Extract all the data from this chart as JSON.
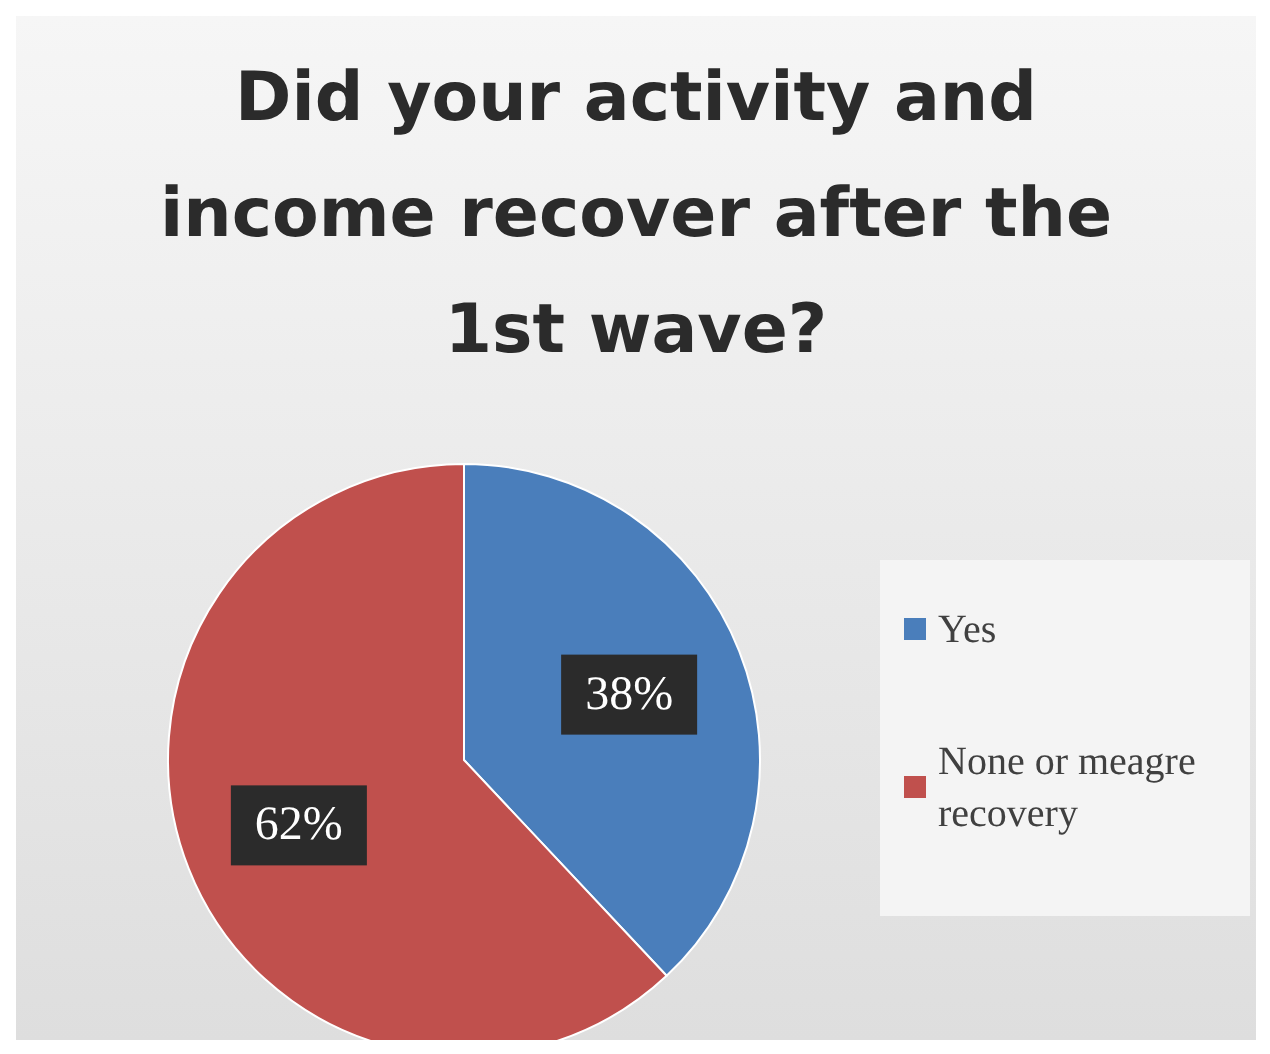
{
  "chart_data": {
    "type": "pie",
    "title": "Did your activity and income recover after the 1st wave?",
    "categories": [
      "Yes",
      "None or meagre recovery"
    ],
    "values": [
      38,
      62
    ],
    "colors": [
      "#4a7ebb",
      "#c0504d"
    ],
    "value_labels": [
      "38%",
      "62%"
    ],
    "legend": "right"
  }
}
